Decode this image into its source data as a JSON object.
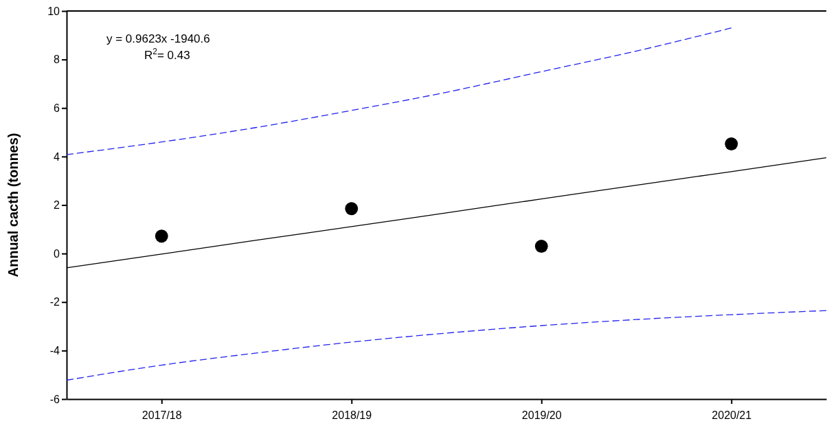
{
  "chart_data": {
    "type": "scatter",
    "ylabel": "Annual cacth (tonnes)",
    "annotations": [
      "y = 0.9623x -1940.6",
      "R$^{2}$= 0.43"
    ],
    "categories": [
      null,
      "2017/18",
      null,
      "2018/19",
      null,
      "2019/20",
      null,
      "2020/21",
      null
    ],
    "ylim": [
      -6,
      10
    ],
    "yticks": [
      -6,
      -4,
      -2,
      0,
      2,
      4,
      6,
      8,
      10
    ],
    "grid": false,
    "series": [
      {
        "color": "#000000",
        "marker": "circle",
        "values": [
          null,
          0.72,
          null,
          1.85,
          null,
          0.3,
          null,
          4.52,
          null
        ]
      },
      {
        "type": "line",
        "color": "#000000",
        "line_style": "solid",
        "marker": "none",
        "values": [
          -0.59,
          -0.02,
          0.55,
          1.11,
          1.68,
          2.25,
          2.82,
          3.38,
          3.95
        ]
      },
      {
        "type": "line",
        "color": "#2222ee",
        "line_style": "dashed",
        "marker": "none",
        "values": [
          4.08,
          4.6,
          5.2,
          5.9,
          6.65,
          7.5,
          8.35,
          9.3,
          null
        ]
      },
      {
        "type": "line",
        "color": "#2222ee",
        "line_style": "dashed",
        "marker": "none",
        "values": [
          -5.22,
          -4.6,
          -4.1,
          -3.65,
          -3.28,
          -2.97,
          -2.72,
          -2.52,
          -2.35
        ]
      }
    ]
  }
}
